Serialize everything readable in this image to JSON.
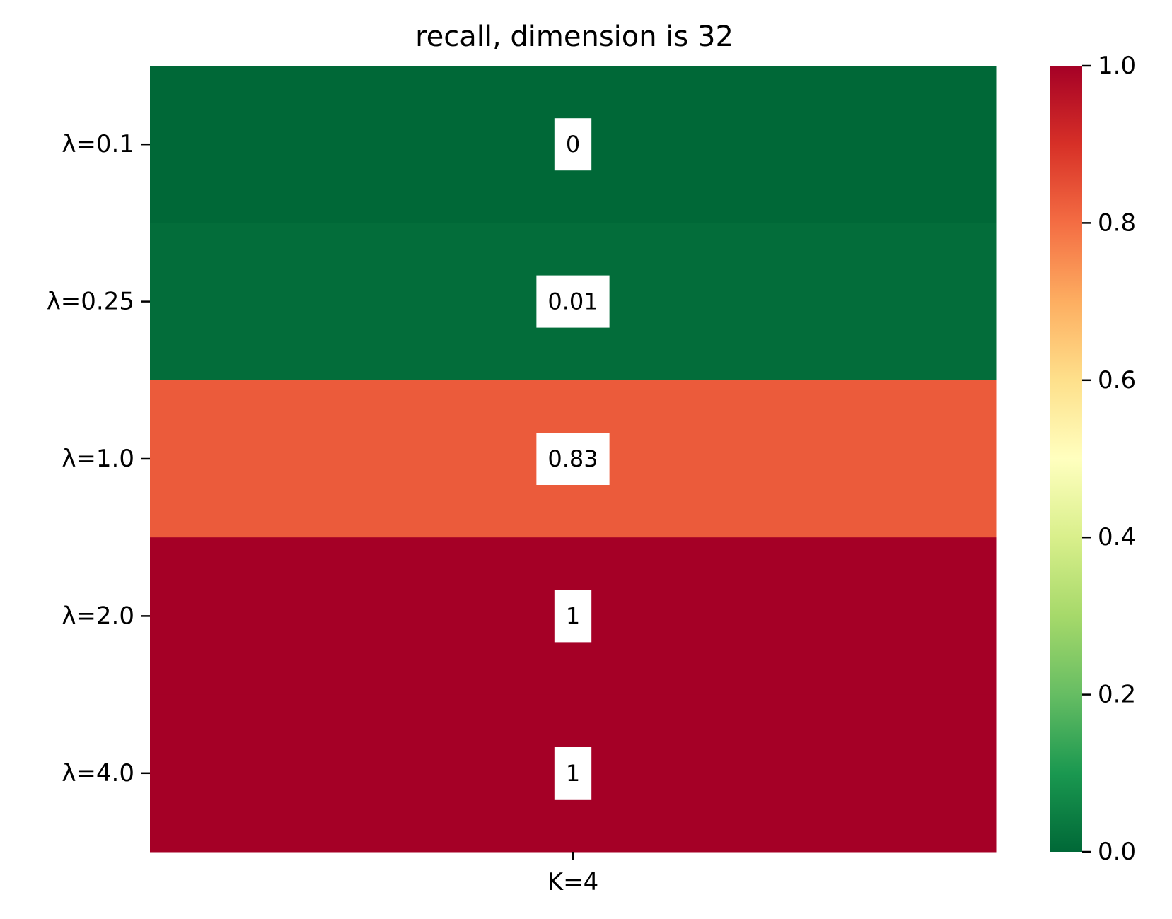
{
  "chart_data": {
    "type": "heatmap",
    "title": "recall, dimension is 32",
    "x_categories": [
      "K=4"
    ],
    "y_categories": [
      "λ=0.1",
      "λ=0.25",
      "λ=1.0",
      "λ=2.0",
      "λ=4.0"
    ],
    "values": [
      [
        0
      ],
      [
        0.01
      ],
      [
        0.83
      ],
      [
        1
      ],
      [
        1
      ]
    ],
    "cell_labels": [
      [
        "0"
      ],
      [
        "0.01"
      ],
      [
        "0.83"
      ],
      [
        "1"
      ],
      [
        "1"
      ]
    ],
    "colormap": "RdYlGn_r",
    "colormap_stops": [
      "#006837",
      "#1a9850",
      "#66bd63",
      "#a6d96a",
      "#d9ef8b",
      "#ffffbf",
      "#fee08b",
      "#fdae61",
      "#f46d43",
      "#d73027",
      "#a50026"
    ],
    "vmin": 0.0,
    "vmax": 1.0,
    "colorbar_ticks": [
      "0.0",
      "0.2",
      "0.4",
      "0.6",
      "0.8",
      "1.0"
    ],
    "annotation_box_color": "#ffffff"
  }
}
